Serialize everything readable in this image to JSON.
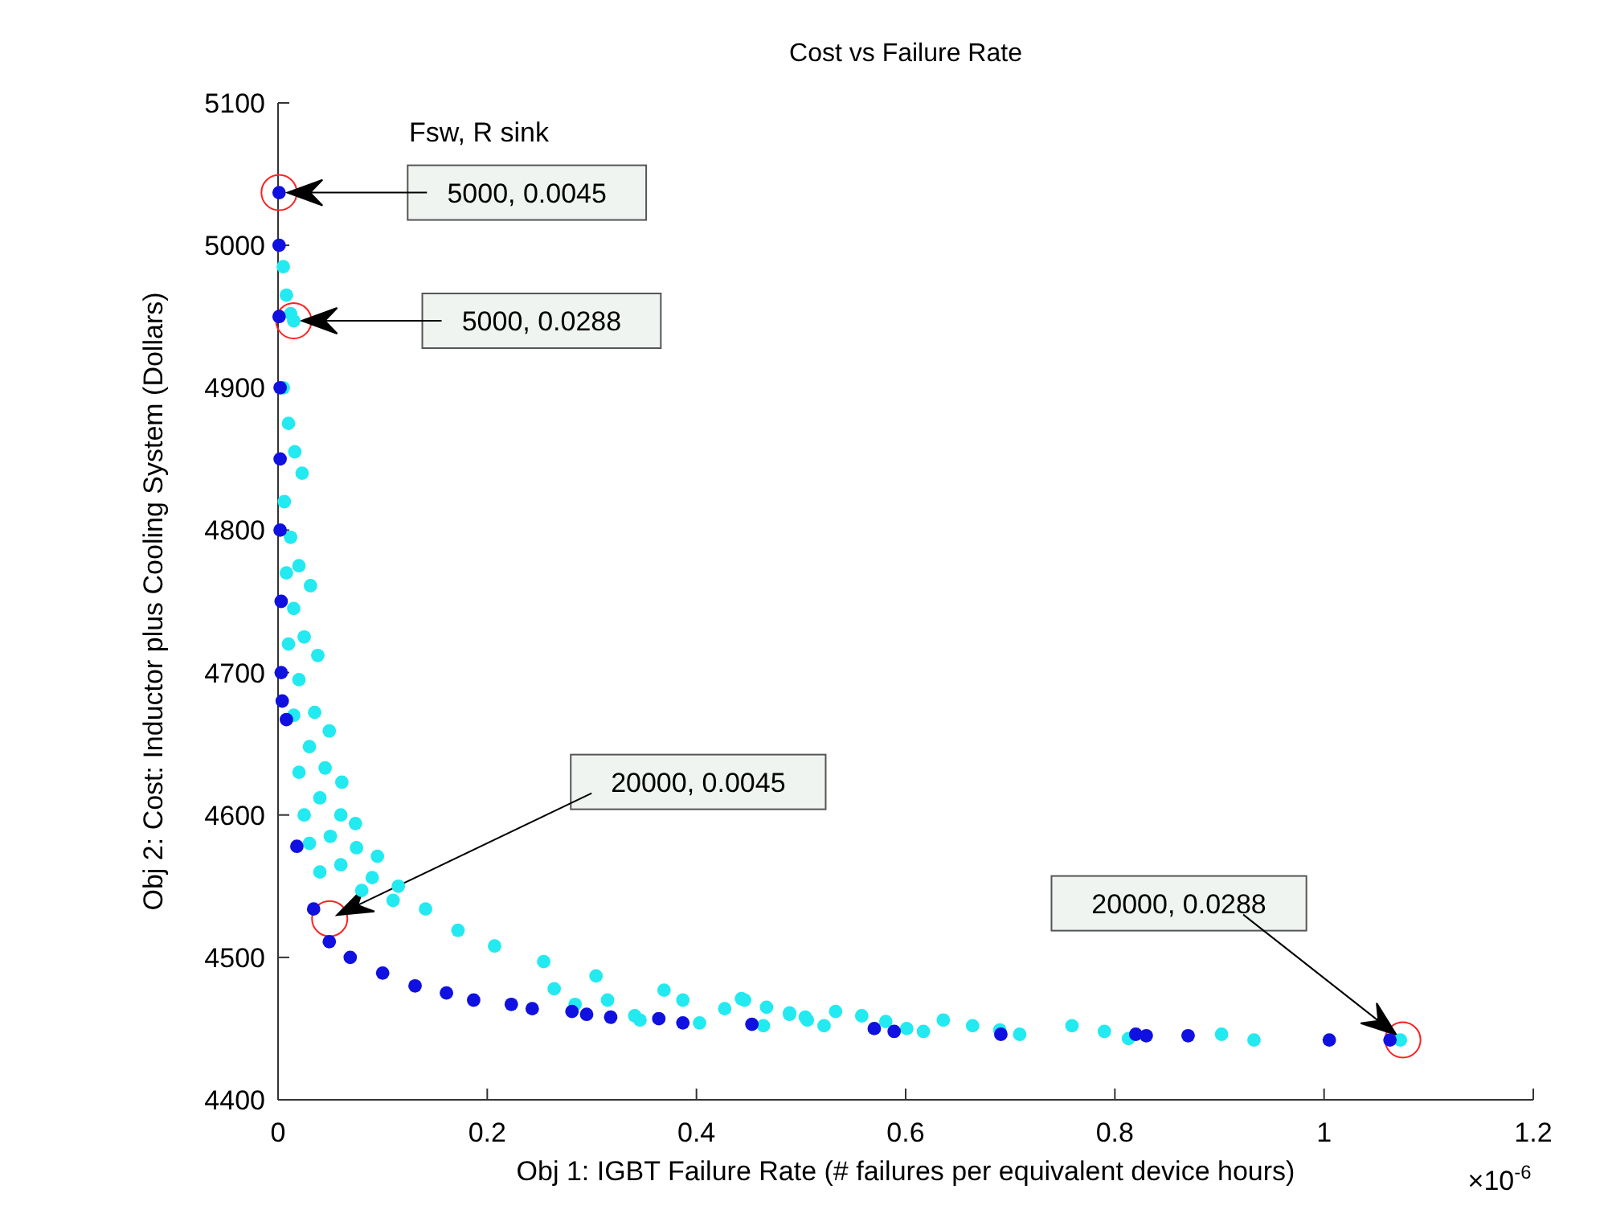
{
  "chart_data": {
    "type": "scatter",
    "title": "Cost vs Failure Rate",
    "xlabel": "Obj 1: IGBT Failure Rate (# failures per equivalent device hours)",
    "ylabel": "Obj 2: Cost: Inductor plus Cooling System (Dollars)",
    "xlim": [
      0,
      1.2
    ],
    "ylim": [
      4400,
      5100
    ],
    "xticks": [
      0,
      0.2,
      0.4,
      0.6,
      0.8,
      1,
      1.2
    ],
    "yticks": [
      4400,
      4500,
      4600,
      4700,
      4800,
      4900,
      5000,
      5100
    ],
    "marker": "circle",
    "series": [
      {
        "color": "#22eaf0",
        "x": [
          0.005,
          0.008,
          0.012,
          0.015,
          0.005,
          0.01,
          0.016,
          0.023,
          0.006,
          0.012,
          0.02,
          0.031,
          0.008,
          0.015,
          0.025,
          0.038,
          0.01,
          0.02,
          0.035,
          0.049,
          0.015,
          0.03,
          0.045,
          0.061,
          0.02,
          0.04,
          0.06,
          0.074,
          0.025,
          0.05,
          0.075,
          0.095,
          0.03,
          0.06,
          0.09,
          0.115,
          0.04,
          0.08,
          0.11,
          0.141,
          0.172,
          0.207,
          0.254,
          0.304,
          0.369,
          0.446,
          0.504,
          0.443,
          0.467,
          0.489,
          0.506,
          0.533,
          0.522,
          0.558,
          0.581,
          0.601,
          0.617,
          0.636,
          0.664,
          0.69,
          0.709,
          0.759,
          0.79,
          0.813,
          0.902,
          0.933,
          1.073,
          0.264,
          0.284,
          0.315,
          0.341,
          0.346,
          0.387,
          0.403,
          0.427,
          0.464,
          0.489
        ],
        "values": [
          4985,
          4965,
          4952,
          4947,
          4900,
          4875,
          4855,
          4840,
          4820,
          4795,
          4775,
          4761,
          4770,
          4745,
          4725,
          4712,
          4720,
          4695,
          4672,
          4659,
          4670,
          4648,
          4633,
          4623,
          4630,
          4612,
          4600,
          4594,
          4600,
          4585,
          4577,
          4571,
          4580,
          4565,
          4556,
          4550,
          4560,
          4547,
          4540,
          4534,
          4519,
          4508,
          4497,
          4487,
          4477,
          4470,
          4458,
          4471,
          4465,
          4461,
          4456,
          4462,
          4452,
          4459,
          4455,
          4450,
          4448,
          4456,
          4452,
          4449,
          4446,
          4452,
          4448,
          4443,
          4446,
          4442,
          4442,
          4478,
          4467,
          4470,
          4459,
          4456,
          4470,
          4454,
          4464,
          4452,
          4460
        ]
      },
      {
        "color": "#1010e0",
        "x": [
          0.001,
          0.001,
          0.001,
          0.002,
          0.002,
          0.002,
          0.003,
          0.003,
          0.004,
          0.008,
          0.018,
          0.034,
          0.049,
          0.069,
          0.1,
          0.131,
          0.161,
          0.187,
          0.223,
          0.243,
          0.281,
          0.295,
          0.318,
          0.364,
          0.387,
          0.453,
          0.57,
          0.589,
          0.691,
          0.82,
          0.83,
          0.87,
          1.005,
          1.063
        ],
        "values": [
          5037,
          5000,
          4950,
          4900,
          4850,
          4800,
          4750,
          4700,
          4680,
          4667,
          4578,
          4534,
          4511,
          4500,
          4489,
          4480,
          4475,
          4470,
          4467,
          4464,
          4462,
          4460,
          4458,
          4457,
          4454,
          4453,
          4450,
          4448,
          4446,
          4446,
          4445,
          4445,
          4442,
          4442
        ]
      }
    ],
    "annotations": [
      "5000, 0.0045",
      "5000, 0.0288",
      "20000, 0.0045",
      "20000, 0.0288",
      "Fsw, R sink",
      "×10$^{-6}$"
    ]
  }
}
